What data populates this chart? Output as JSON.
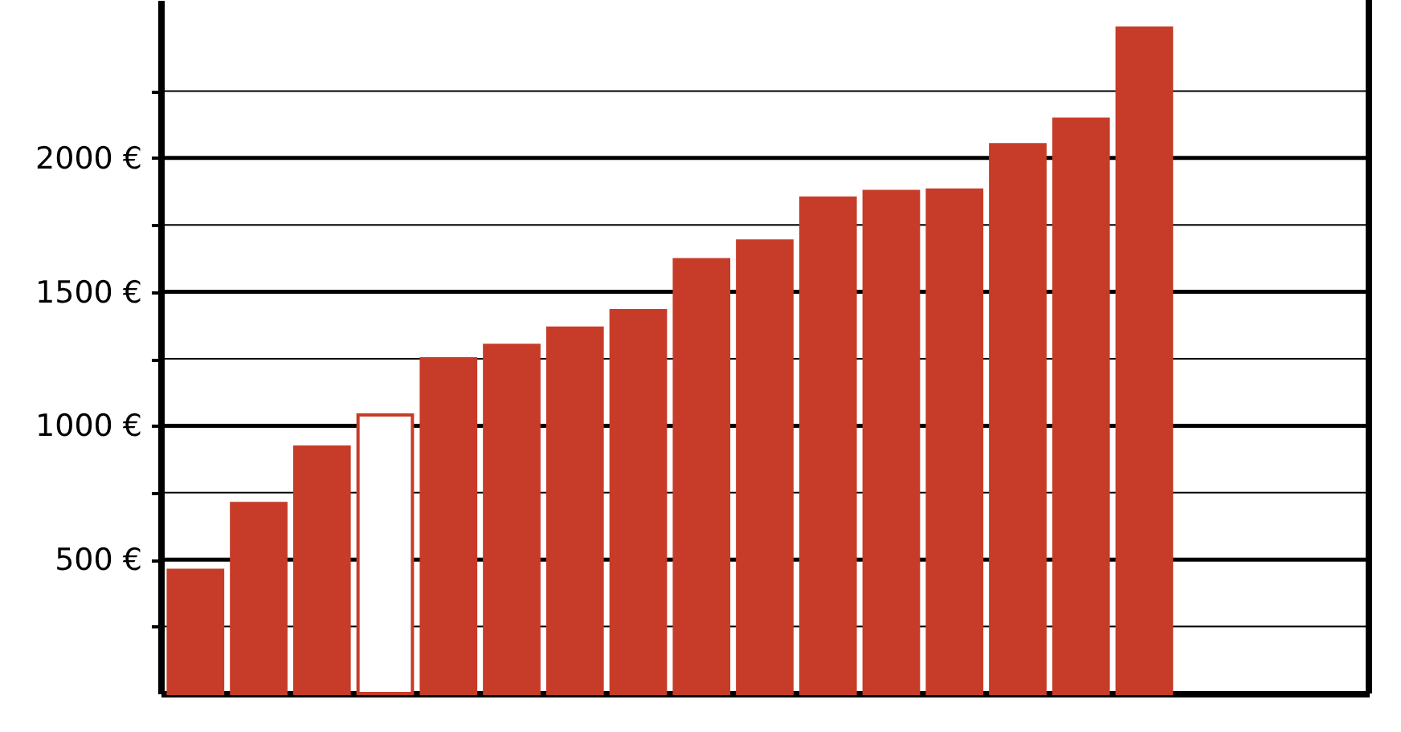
{
  "chart_data": {
    "type": "bar",
    "categories": [
      null,
      null,
      null,
      null,
      null,
      null,
      null,
      null,
      null,
      null,
      null,
      null,
      null,
      null,
      null,
      null,
      null,
      null,
      null
    ],
    "values": [
      460,
      710,
      920,
      1040,
      1250,
      1300,
      1365,
      1430,
      1620,
      1690,
      1850,
      1875,
      1880,
      2050,
      2145,
      2485,
      null,
      null,
      null
    ],
    "color": "#c63c28",
    "colors": [
      "#c63c28",
      "#c63c28",
      "#c63c28",
      "#ffffff",
      "#c63c28",
      "#c63c28",
      "#c63c28",
      "#c63c28",
      "#c63c28",
      "#c63c28",
      "#c63c28",
      "#c63c28",
      "#c63c28",
      "#c63c28",
      "#c63c28",
      "#c63c28",
      "#c63c28",
      "#c63c28",
      "#c63c28"
    ],
    "ylim": [
      0,
      2590
    ],
    "yticks": [
      {
        "value": 250,
        "label": null
      },
      {
        "value": 500,
        "label": "500 €"
      },
      {
        "value": 750,
        "label": null
      },
      {
        "value": 1000,
        "label": "1000 €"
      },
      {
        "value": 1250,
        "label": null
      },
      {
        "value": 1500,
        "label": "1500 €"
      },
      {
        "value": 1750,
        "label": null
      },
      {
        "value": 2000,
        "label": "2000 €"
      },
      {
        "value": 2250,
        "label": null
      }
    ],
    "grid": true,
    "tick_labels": "y"
  }
}
